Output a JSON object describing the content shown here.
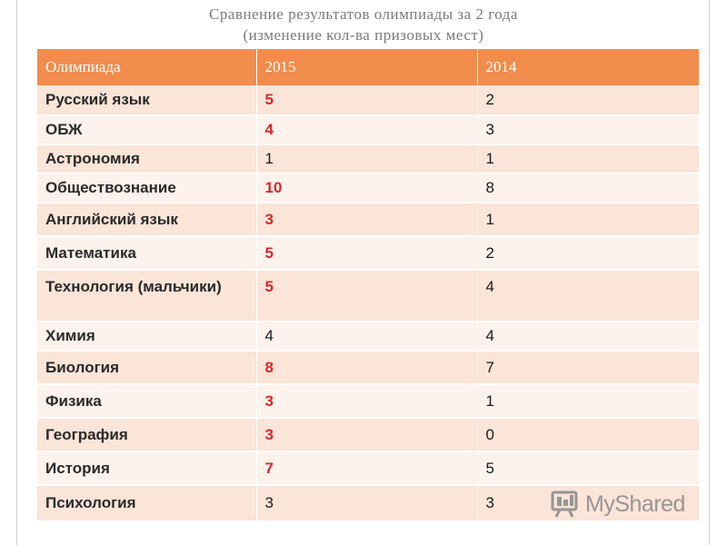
{
  "title": {
    "line1": "Сравнение результатов олимпиады за 2 года",
    "line2": "(изменение кол-ва  призовых мест)"
  },
  "table": {
    "headers": [
      "Олимпиада",
      "2015",
      "2014"
    ],
    "rows": [
      {
        "subject": "Русский язык",
        "y2015": "5",
        "y2014": "2",
        "red": true
      },
      {
        "subject": "ОБЖ",
        "y2015": "4",
        "y2014": "3",
        "red": true
      },
      {
        "subject": "Астрономия",
        "y2015": "1",
        "y2014": "1",
        "red": false
      },
      {
        "subject": "Обществознание",
        "y2015": "10",
        "y2014": "8",
        "red": true
      },
      {
        "subject": "Английский язык",
        "y2015": "3",
        "y2014": "1",
        "red": true
      },
      {
        "subject": "Математика",
        "y2015": "5",
        "y2014": "2",
        "red": true
      },
      {
        "subject": "Технология (мальчики)",
        "y2015": "5",
        "y2014": "4",
        "red": true
      },
      {
        "subject": "Химия",
        "y2015": "4",
        "y2014": "4",
        "red": false
      },
      {
        "subject": "Биология",
        "y2015": "8",
        "y2014": "7",
        "red": true
      },
      {
        "subject": "Физика",
        "y2015": "3",
        "y2014": "1",
        "red": true
      },
      {
        "subject": "География",
        "y2015": "3",
        "y2014": "0",
        "red": true
      },
      {
        "subject": "История",
        "y2015": "7",
        "y2014": "5",
        "red": true
      },
      {
        "subject": "Психология",
        "y2015": "3",
        "y2014": "3",
        "red": false
      }
    ]
  },
  "watermark": {
    "text": "MyShared",
    "icon": "myshared-logo-icon"
  },
  "colors": {
    "header_bg": "#f28c4c",
    "row_odd": "#fbe4d8",
    "row_even": "#fdf2ec",
    "highlight": "#d8262c"
  }
}
